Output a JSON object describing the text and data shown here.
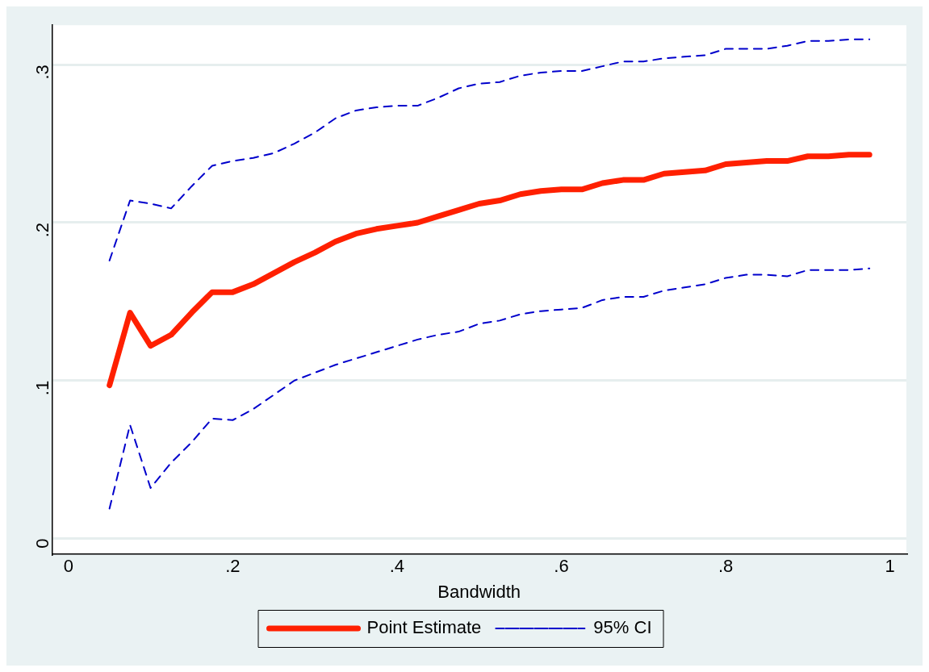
{
  "chart_data": {
    "type": "line",
    "xlabel": "Bandwidth",
    "x": [
      0.05,
      0.075,
      0.1,
      0.125,
      0.15,
      0.175,
      0.2,
      0.225,
      0.25,
      0.275,
      0.3,
      0.325,
      0.35,
      0.375,
      0.4,
      0.425,
      0.45,
      0.475,
      0.5,
      0.525,
      0.55,
      0.575,
      0.6,
      0.625,
      0.65,
      0.675,
      0.7,
      0.725,
      0.75,
      0.775,
      0.8,
      0.825,
      0.85,
      0.875,
      0.9,
      0.925,
      0.95,
      0.975
    ],
    "series": [
      {
        "name": "Point Estimate",
        "color": "#ff2000",
        "line_style": "solid",
        "values": [
          0.097,
          0.143,
          0.122,
          0.129,
          0.143,
          0.156,
          0.156,
          0.161,
          0.168,
          0.175,
          0.181,
          0.188,
          0.193,
          0.196,
          0.198,
          0.2,
          0.204,
          0.208,
          0.212,
          0.214,
          0.218,
          0.22,
          0.221,
          0.221,
          0.225,
          0.227,
          0.227,
          0.231,
          0.232,
          0.233,
          0.237,
          0.238,
          0.239,
          0.239,
          0.242,
          0.242,
          0.243,
          0.243
        ]
      },
      {
        "name": "95% CI",
        "color": "#0000cc",
        "line_style": "dashed",
        "values": [
          0.176,
          0.214,
          0.212,
          0.209,
          0.223,
          0.236,
          0.239,
          0.241,
          0.244,
          0.25,
          0.257,
          0.266,
          0.271,
          0.273,
          0.274,
          0.274,
          0.279,
          0.285,
          0.288,
          0.289,
          0.293,
          0.295,
          0.296,
          0.296,
          0.299,
          0.302,
          0.302,
          0.304,
          0.305,
          0.306,
          0.31,
          0.31,
          0.31,
          0.312,
          0.315,
          0.315,
          0.316,
          0.316
        ]
      },
      {
        "color": "#0000cc",
        "line_style": "dashed",
        "values": [
          0.019,
          0.072,
          0.032,
          0.048,
          0.061,
          0.076,
          0.075,
          0.082,
          0.091,
          0.1,
          0.105,
          0.11,
          0.114,
          0.118,
          0.122,
          0.126,
          0.129,
          0.131,
          0.136,
          0.138,
          0.142,
          0.144,
          0.145,
          0.146,
          0.151,
          0.153,
          0.153,
          0.157,
          0.159,
          0.161,
          0.165,
          0.167,
          0.167,
          0.166,
          0.17,
          0.17,
          0.17,
          0.171
        ]
      }
    ],
    "xlim": [
      -0.02,
      1.02
    ],
    "xticks": [
      0,
      {
        "value": 0.2,
        "label": ".2"
      },
      {
        "value": 0.4,
        "label": ".4"
      },
      {
        "value": 0.6,
        "label": ".6"
      },
      {
        "value": 0.8,
        "label": ".8"
      },
      1
    ],
    "ylim": [
      -0.01,
      0.325
    ],
    "yticks": [
      0,
      {
        "value": 0.1,
        "label": ".1"
      },
      {
        "value": 0.2,
        "label": ".2"
      },
      {
        "value": 0.3,
        "label": ".3"
      }
    ],
    "grid": "y",
    "legend": "bottom",
    "marker": "none"
  }
}
